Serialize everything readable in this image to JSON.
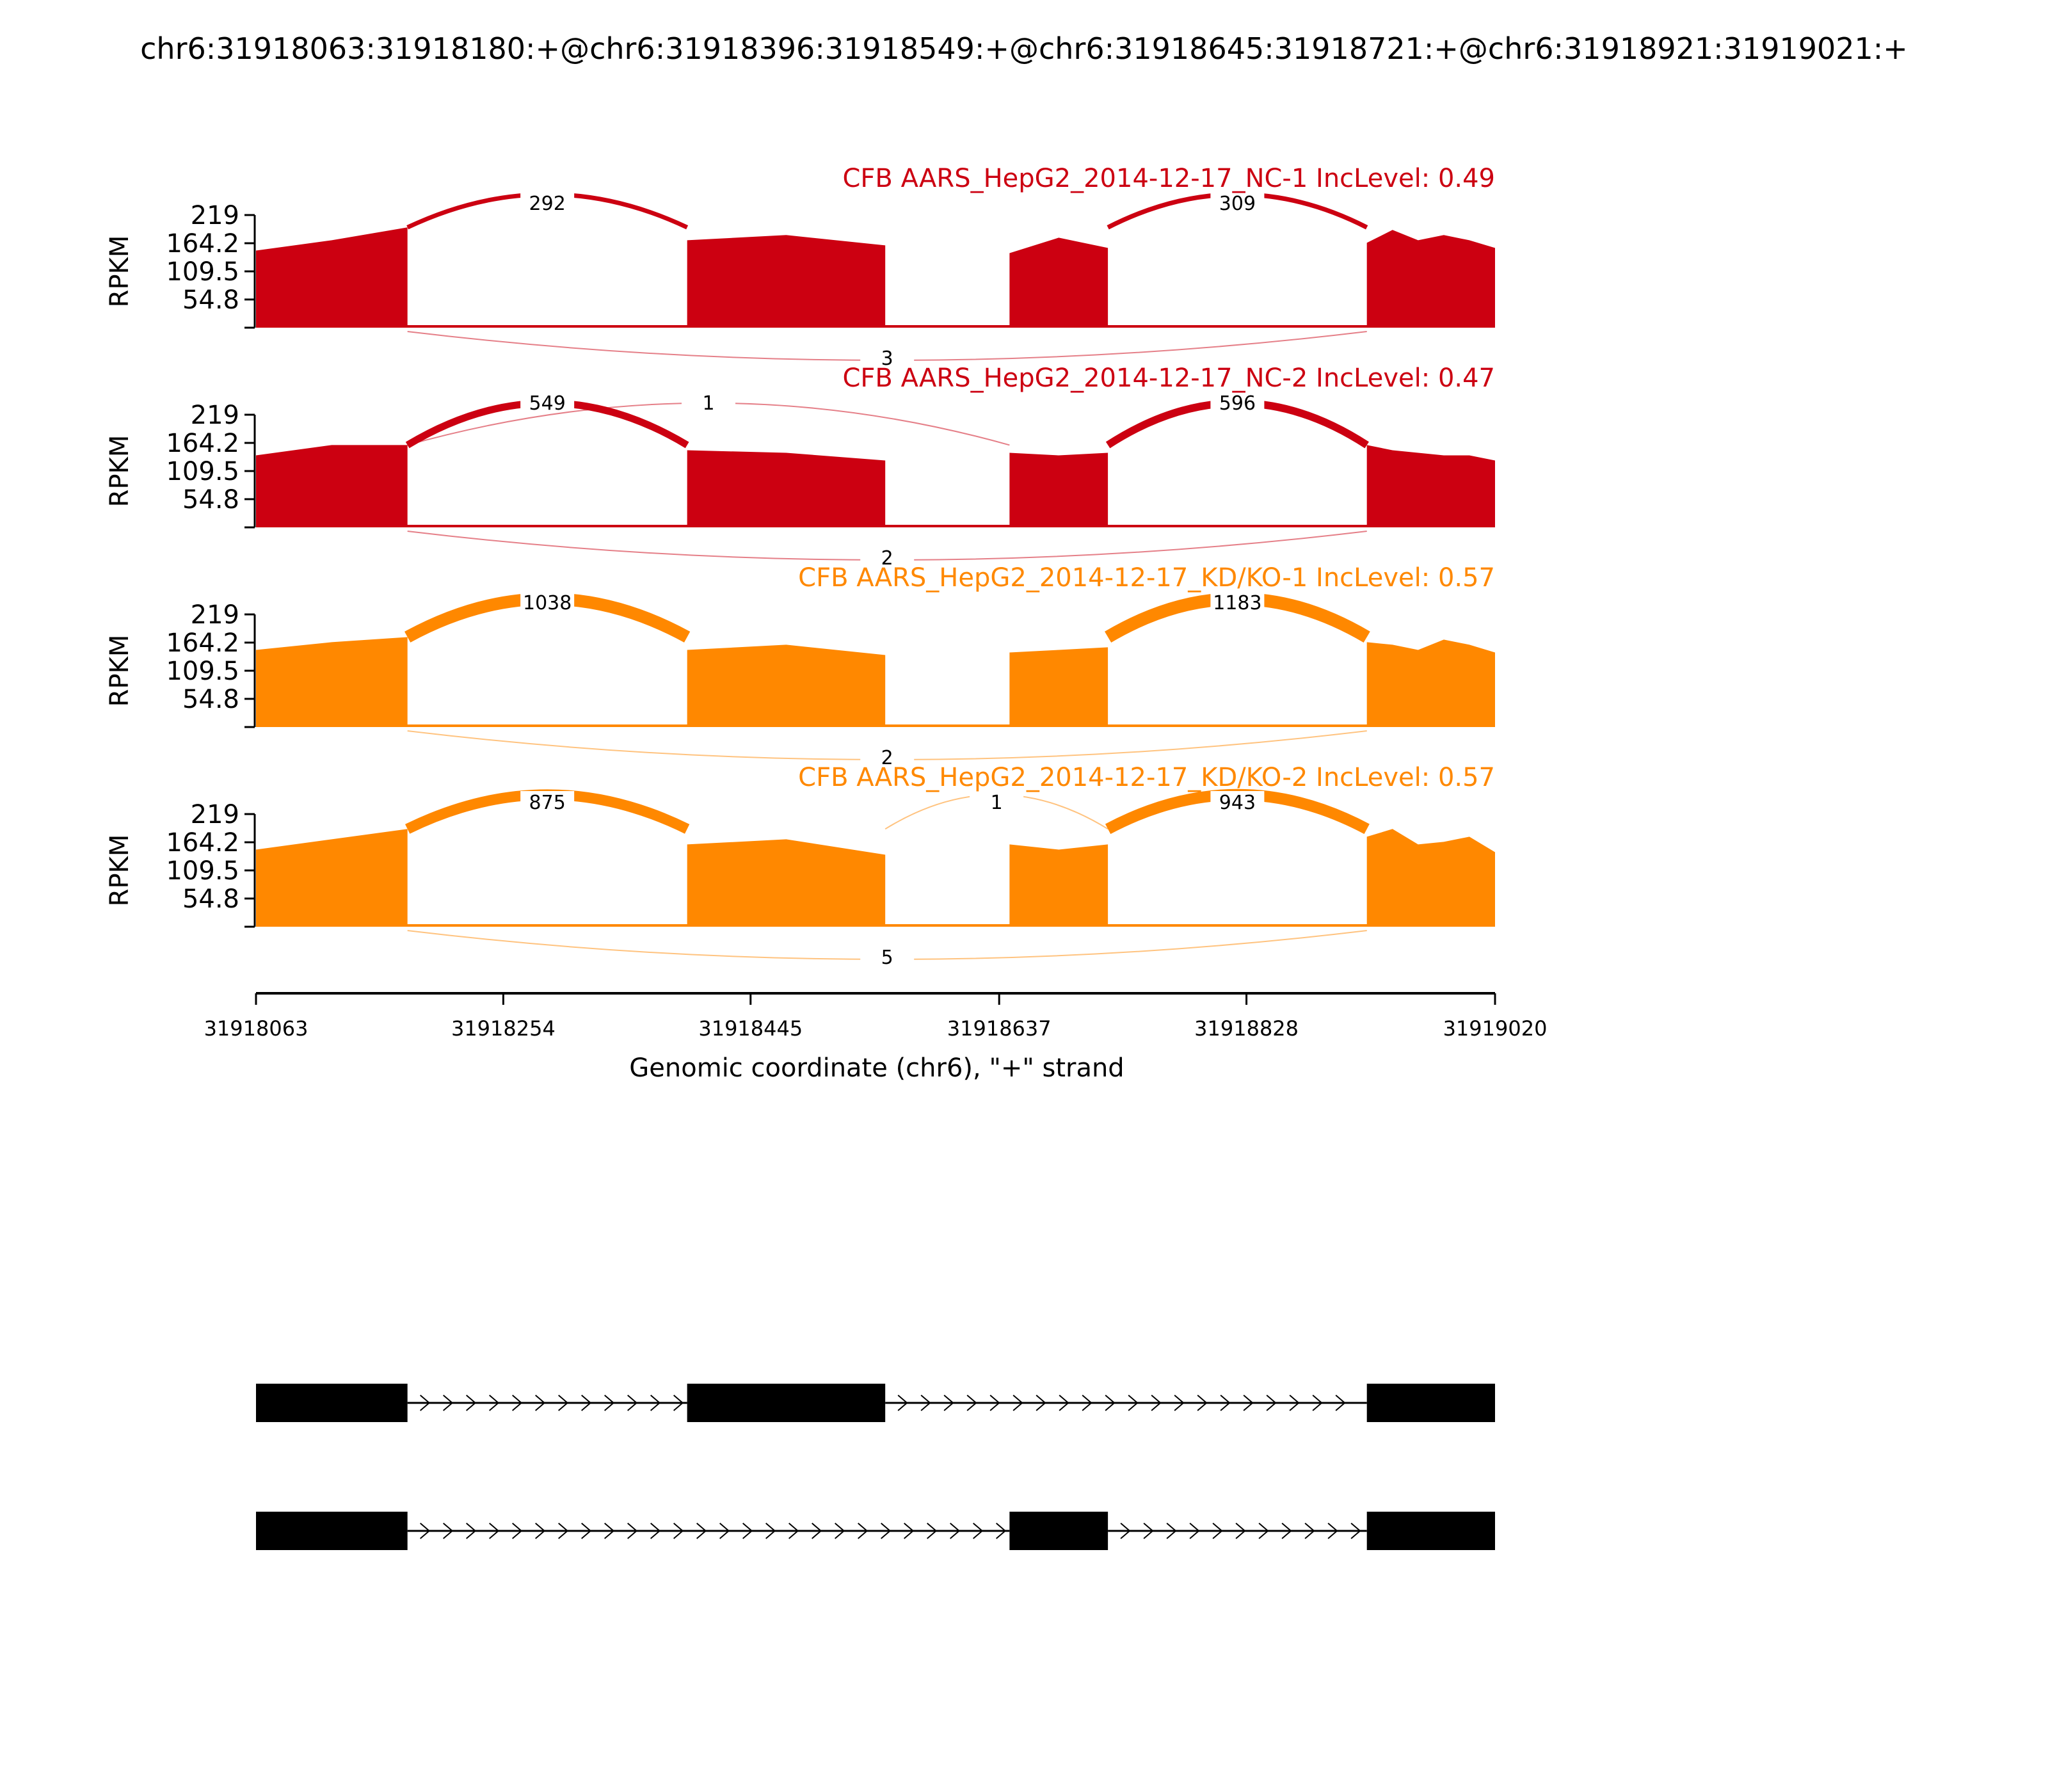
{
  "title": "chr6:31918063:31918180:+@chr6:31918396:31918549:+@chr6:31918645:31918721:+@chr6:31918921:31919021:+",
  "colors": {
    "nc": "#cc0011",
    "kd": "#ff8800",
    "axis": "#000000"
  },
  "chart_data": {
    "type": "area",
    "title": "chr6:31918063:31918180:+@chr6:31918396:31918549:+@chr6:31918645:31918721:+@chr6:31918921:31919021:+",
    "xlabel": "Genomic coordinate (chr6), \"+\" strand",
    "ylabel": "RPKM",
    "xlim": [
      31918063,
      31919020
    ],
    "ylim": [
      0,
      219
    ],
    "x_ticks": [
      31918063,
      31918254,
      31918445,
      31918637,
      31918828,
      31919020
    ],
    "x_tick_labels": [
      "31918063",
      "31918254",
      "31918445",
      "31918637",
      "31918828",
      "31919020"
    ],
    "y_ticks": [
      54.8,
      109.5,
      164.2,
      219
    ],
    "y_tick_labels": [
      "54.8",
      "109.5",
      "164.2",
      "219"
    ],
    "exons": [
      [
        31918063,
        31918180
      ],
      [
        31918396,
        31918549
      ],
      [
        31918645,
        31918721
      ],
      [
        31918921,
        31919020
      ]
    ],
    "series": [
      {
        "name": "CFB AARS_HepG2_2014-12-17_NC-1 IncLevel: 0.49",
        "color_key": "nc",
        "coverage": [
          150,
          170,
          195,
          170,
          180,
          160,
          145,
          175,
          155,
          165,
          190,
          170,
          180,
          170,
          155
        ],
        "junctions": [
          {
            "start": 31918180,
            "end": 31918396,
            "count": 292,
            "side": "top"
          },
          {
            "start": 31918721,
            "end": 31918921,
            "count": 309,
            "side": "top"
          },
          {
            "start": 31918180,
            "end": 31918921,
            "count": 3,
            "side": "bottom"
          }
        ]
      },
      {
        "name": "CFB AARS_HepG2_2014-12-17_NC-2 IncLevel: 0.47",
        "color_key": "nc",
        "coverage": [
          140,
          160,
          160,
          150,
          145,
          130,
          145,
          140,
          145,
          160,
          150,
          145,
          140,
          140,
          130
        ],
        "junctions": [
          {
            "start": 31918180,
            "end": 31918396,
            "count": 549,
            "side": "top"
          },
          {
            "start": 31918721,
            "end": 31918921,
            "count": 596,
            "side": "top"
          },
          {
            "start": 31918180,
            "end": 31918645,
            "count": 1,
            "side": "top"
          },
          {
            "start": 31918180,
            "end": 31918921,
            "count": 2,
            "side": "bottom"
          }
        ]
      },
      {
        "name": "CFB AARS_HepG2_2014-12-17_KD/KO-1 IncLevel: 0.57",
        "color_key": "kd",
        "coverage": [
          150,
          165,
          175,
          150,
          160,
          140,
          145,
          150,
          155,
          165,
          160,
          150,
          170,
          160,
          145
        ],
        "junctions": [
          {
            "start": 31918180,
            "end": 31918396,
            "count": 1038,
            "side": "top"
          },
          {
            "start": 31918721,
            "end": 31918921,
            "count": 1183,
            "side": "top"
          },
          {
            "start": 31918180,
            "end": 31918921,
            "count": 2,
            "side": "bottom"
          }
        ]
      },
      {
        "name": "CFB AARS_HepG2_2014-12-17_KD/KO-2 IncLevel: 0.57",
        "color_key": "kd",
        "coverage": [
          150,
          170,
          190,
          160,
          170,
          140,
          160,
          150,
          160,
          175,
          190,
          160,
          165,
          175,
          145
        ],
        "junctions": [
          {
            "start": 31918180,
            "end": 31918396,
            "count": 875,
            "side": "top"
          },
          {
            "start": 31918721,
            "end": 31918921,
            "count": 943,
            "side": "top"
          },
          {
            "start": 31918549,
            "end": 31918721,
            "count": 1,
            "side": "top"
          },
          {
            "start": 31918180,
            "end": 31918921,
            "count": 5,
            "side": "bottom"
          }
        ]
      }
    ],
    "isoforms": [
      {
        "exons": [
          [
            31918063,
            31918180
          ],
          [
            31918396,
            31918549
          ],
          [
            31918921,
            31919020
          ]
        ]
      },
      {
        "exons": [
          [
            31918063,
            31918180
          ],
          [
            31918645,
            31918721
          ],
          [
            31918921,
            31919020
          ]
        ]
      }
    ]
  }
}
